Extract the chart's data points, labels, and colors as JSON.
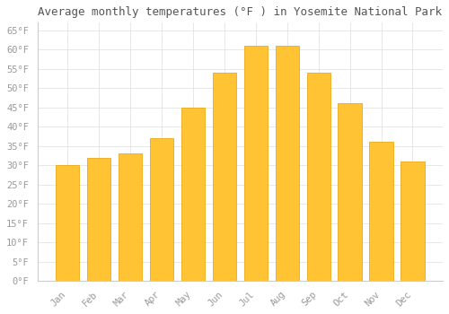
{
  "title": "Average monthly temperatures (°F ) in Yosemite National Park",
  "months": [
    "Jan",
    "Feb",
    "Mar",
    "Apr",
    "May",
    "Jun",
    "Jul",
    "Aug",
    "Sep",
    "Oct",
    "Nov",
    "Dec"
  ],
  "values": [
    30,
    32,
    33,
    37,
    45,
    54,
    61,
    61,
    54,
    46,
    36,
    31
  ],
  "bar_color_top": "#FFC333",
  "bar_color_bottom": "#F5A800",
  "bar_edge_color": "#E8A000",
  "background_color": "#FFFFFF",
  "plot_bg_color": "#FFFFFF",
  "grid_color": "#DDDDDD",
  "ylim": [
    0,
    67
  ],
  "yticks": [
    0,
    5,
    10,
    15,
    20,
    25,
    30,
    35,
    40,
    45,
    50,
    55,
    60,
    65
  ],
  "ytick_labels": [
    "0°F",
    "5°F",
    "10°F",
    "15°F",
    "20°F",
    "25°F",
    "30°F",
    "35°F",
    "40°F",
    "45°F",
    "50°F",
    "55°F",
    "60°F",
    "65°F"
  ],
  "title_fontsize": 9,
  "tick_fontsize": 7.5,
  "font_family": "monospace",
  "tick_color": "#999999",
  "bar_width": 0.75
}
